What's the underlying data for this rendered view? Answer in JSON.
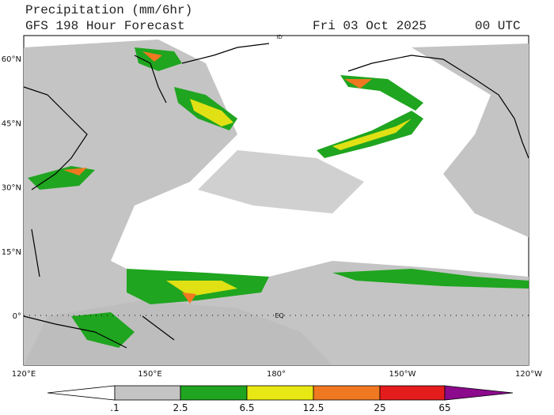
{
  "header": {
    "title": "Precipitation (mm/6hr)",
    "subtitle": "GFS 198 Hour Forecast",
    "date": "Fri 03 Oct 2025",
    "time": "00 UTC"
  },
  "map": {
    "lat_labels": [
      "60°N",
      "45°N",
      "30°N",
      "15°N",
      "0°"
    ],
    "lon_labels": [
      "120°E",
      "150°E",
      "180°",
      "150°W",
      "120°W"
    ],
    "equator_label": "EQ",
    "dateline_label": "ID"
  },
  "colorbar": {
    "labels": [
      ".1",
      "2.5",
      "6.5",
      "12.5",
      "25",
      "65"
    ]
  }
}
